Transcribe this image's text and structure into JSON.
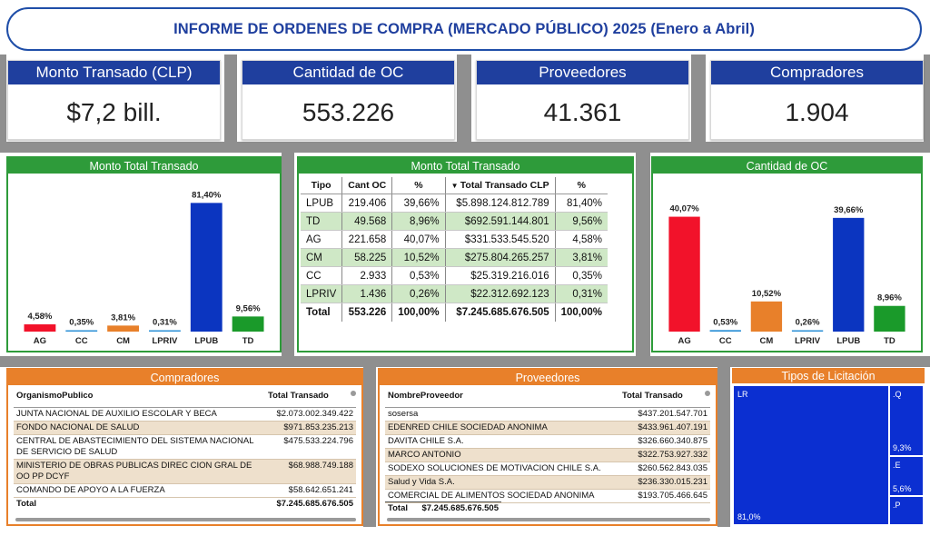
{
  "title": "INFORME DE ORDENES DE COMPRA (MERCADO PÚBLICO) 2025 (Enero a Abril)",
  "kpis": [
    {
      "label": "Monto Transado (CLP)",
      "value": "$7,2 bill."
    },
    {
      "label": "Cantidad de OC",
      "value": "553.226"
    },
    {
      "label": "Proveedores",
      "value": "41.361"
    },
    {
      "label": "Compradores",
      "value": "1.904"
    }
  ],
  "colors": {
    "AG": "#f2122a",
    "CC": "#2a8fd6",
    "CM": "#e8802a",
    "LPRIV": "#2a8fd6",
    "LPUB": "#0b35c0",
    "TD": "#1a9a2a",
    "green": "#2e9b3a",
    "orange": "#e8802a",
    "navy": "#1f3f9e"
  },
  "chart_data": [
    {
      "type": "bar",
      "title": "Monto Total Transado",
      "categories": [
        "AG",
        "CC",
        "CM",
        "LPRIV",
        "LPUB",
        "TD"
      ],
      "values": [
        4.58,
        0.35,
        3.81,
        0.31,
        81.4,
        9.56
      ],
      "labels": [
        "4,58%",
        "0,35%",
        "3,81%",
        "0,31%",
        "81,40%",
        "9,56%"
      ],
      "ylim": [
        0,
        100
      ]
    },
    {
      "type": "bar",
      "title": "Cantidad de OC",
      "categories": [
        "AG",
        "CC",
        "CM",
        "LPRIV",
        "LPUB",
        "TD"
      ],
      "values": [
        40.07,
        0.53,
        10.52,
        0.26,
        39.66,
        8.96
      ],
      "labels": [
        "40,07%",
        "0,53%",
        "10,52%",
        "0,26%",
        "39,66%",
        "8,96%"
      ],
      "ylim": [
        0,
        45
      ]
    }
  ],
  "middle_table": {
    "title": "Monto Total Transado",
    "headers": [
      "Tipo",
      "Cant OC",
      "%",
      "Total Transado CLP",
      "%"
    ],
    "rows": [
      [
        "LPUB",
        "219.406",
        "39,66%",
        "$5.898.124.812.789",
        "81,40%"
      ],
      [
        "TD",
        "49.568",
        "8,96%",
        "$692.591.144.801",
        "9,56%"
      ],
      [
        "AG",
        "221.658",
        "40,07%",
        "$331.533.545.520",
        "4,58%"
      ],
      [
        "CM",
        "58.225",
        "10,52%",
        "$275.804.265.257",
        "3,81%"
      ],
      [
        "CC",
        "2.933",
        "0,53%",
        "$25.319.216.016",
        "0,35%"
      ],
      [
        "LPRIV",
        "1.436",
        "0,26%",
        "$22.312.692.123",
        "0,31%"
      ]
    ],
    "total": [
      "Total",
      "553.226",
      "100,00%",
      "$7.245.685.676.505",
      "100,00%"
    ]
  },
  "compradores": {
    "title": "Compradores",
    "headers": [
      "OrganismoPublico",
      "Total Transado"
    ],
    "rows": [
      [
        "JUNTA NACIONAL DE AUXILIO ESCOLAR Y BECA",
        "$2.073.002.349.422"
      ],
      [
        "FONDO NACIONAL DE SALUD",
        "$971.853.235.213"
      ],
      [
        "CENTRAL DE ABASTECIMIENTO DEL SISTEMA NACIONAL DE SERVICIO DE SALUD",
        "$475.533.224.796"
      ],
      [
        "MINISTERIO DE OBRAS PUBLICAS DIREC CION GRAL DE OO PP DCYF",
        "$68.988.749.188"
      ],
      [
        "COMANDO DE APOYO A LA FUERZA",
        "$58.642.651.241"
      ]
    ],
    "total": [
      "Total",
      "$7.245.685.676.505"
    ]
  },
  "proveedores": {
    "title": "Proveedores",
    "headers": [
      "NombreProveedor",
      "Total Transado"
    ],
    "rows": [
      [
        "sosersa",
        "$437.201.547.701"
      ],
      [
        "EDENRED CHILE SOCIEDAD ANONIMA",
        "$433.961.407.191"
      ],
      [
        "DAVITA CHILE S.A.",
        "$326.660.340.875"
      ],
      [
        "MARCO ANTONIO",
        "$322.753.927.332"
      ],
      [
        "SODEXO SOLUCIONES DE MOTIVACION CHILE S.A.",
        "$260.562.843.035"
      ],
      [
        "Salud y Vida S.A.",
        "$236.330.015.231"
      ],
      [
        "COMERCIAL DE ALIMENTOS SOCIEDAD ANONIMA",
        "$193.705.466.645"
      ]
    ],
    "total": [
      "Total",
      "$7.245.685.676.505"
    ]
  },
  "tipos": {
    "title": "Tipos de Licitación",
    "labels": {
      "lr": "LR",
      "lr_pct": "81,0%",
      "q": ".Q",
      "q_pct": "9,3%",
      "e": ".E",
      "e_pct": "5,6%",
      "p": ".P"
    }
  }
}
